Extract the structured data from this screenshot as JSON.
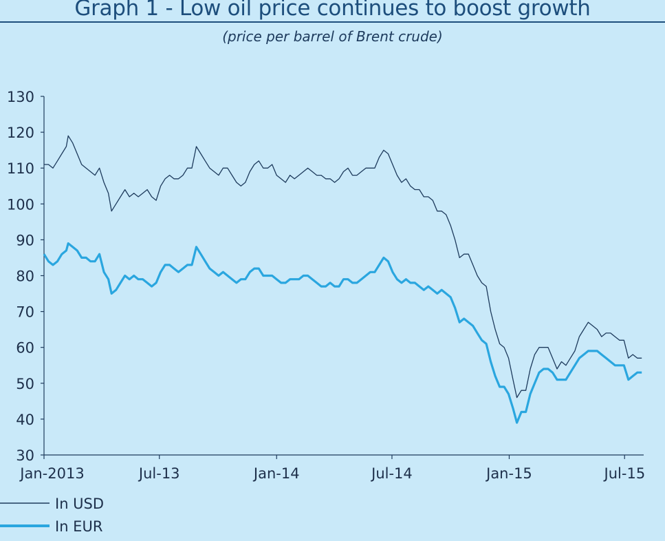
{
  "chart_data": {
    "type": "line",
    "title": "Graph 1 - Low oil price continues to boost growth",
    "subtitle": "(price per barrel of Brent crude)",
    "xlabel": "",
    "ylabel": "",
    "ylim": [
      30,
      130
    ],
    "yticks": [
      30,
      40,
      50,
      60,
      70,
      80,
      90,
      100,
      110,
      120,
      130
    ],
    "xlim": [
      "2013-01-01",
      "2015-07-31"
    ],
    "xticks": [
      {
        "date": "2013-01-01",
        "label": "Jan-2013"
      },
      {
        "date": "2013-07-01",
        "label": "Jul-13"
      },
      {
        "date": "2014-01-01",
        "label": "Jan-14"
      },
      {
        "date": "2014-07-01",
        "label": "Jul-14"
      },
      {
        "date": "2015-01-01",
        "label": "Jan-15"
      },
      {
        "date": "2015-07-01",
        "label": "Jul-15"
      }
    ],
    "grid": false,
    "legend_position": "bottom-left",
    "series": [
      {
        "name": "In USD",
        "color": "#1d3a5c",
        "points": [
          [
            "2013-01-01",
            111
          ],
          [
            "2013-01-08",
            111
          ],
          [
            "2013-01-15",
            110
          ],
          [
            "2013-01-22",
            112
          ],
          [
            "2013-01-29",
            114
          ],
          [
            "2013-02-05",
            116
          ],
          [
            "2013-02-08",
            119
          ],
          [
            "2013-02-15",
            117
          ],
          [
            "2013-02-22",
            114
          ],
          [
            "2013-03-01",
            111
          ],
          [
            "2013-03-08",
            110
          ],
          [
            "2013-03-15",
            109
          ],
          [
            "2013-03-22",
            108
          ],
          [
            "2013-03-29",
            110
          ],
          [
            "2013-04-05",
            106
          ],
          [
            "2013-04-12",
            103
          ],
          [
            "2013-04-17",
            98
          ],
          [
            "2013-04-24",
            100
          ],
          [
            "2013-05-01",
            102
          ],
          [
            "2013-05-08",
            104
          ],
          [
            "2013-05-15",
            102
          ],
          [
            "2013-05-22",
            103
          ],
          [
            "2013-05-29",
            102
          ],
          [
            "2013-06-05",
            103
          ],
          [
            "2013-06-12",
            104
          ],
          [
            "2013-06-19",
            102
          ],
          [
            "2013-06-26",
            101
          ],
          [
            "2013-07-03",
            105
          ],
          [
            "2013-07-10",
            107
          ],
          [
            "2013-07-17",
            108
          ],
          [
            "2013-07-24",
            107
          ],
          [
            "2013-07-31",
            107
          ],
          [
            "2013-08-07",
            108
          ],
          [
            "2013-08-14",
            110
          ],
          [
            "2013-08-21",
            110
          ],
          [
            "2013-08-28",
            116
          ],
          [
            "2013-09-04",
            114
          ],
          [
            "2013-09-11",
            112
          ],
          [
            "2013-09-18",
            110
          ],
          [
            "2013-09-25",
            109
          ],
          [
            "2013-10-02",
            108
          ],
          [
            "2013-10-09",
            110
          ],
          [
            "2013-10-16",
            110
          ],
          [
            "2013-10-23",
            108
          ],
          [
            "2013-10-30",
            106
          ],
          [
            "2013-11-06",
            105
          ],
          [
            "2013-11-13",
            106
          ],
          [
            "2013-11-20",
            109
          ],
          [
            "2013-11-27",
            111
          ],
          [
            "2013-12-04",
            112
          ],
          [
            "2013-12-11",
            110
          ],
          [
            "2013-12-18",
            110
          ],
          [
            "2013-12-25",
            111
          ],
          [
            "2014-01-01",
            108
          ],
          [
            "2014-01-08",
            107
          ],
          [
            "2014-01-15",
            106
          ],
          [
            "2014-01-22",
            108
          ],
          [
            "2014-01-29",
            107
          ],
          [
            "2014-02-05",
            108
          ],
          [
            "2014-02-12",
            109
          ],
          [
            "2014-02-19",
            110
          ],
          [
            "2014-02-26",
            109
          ],
          [
            "2014-03-05",
            108
          ],
          [
            "2014-03-12",
            108
          ],
          [
            "2014-03-19",
            107
          ],
          [
            "2014-03-26",
            107
          ],
          [
            "2014-04-02",
            106
          ],
          [
            "2014-04-09",
            107
          ],
          [
            "2014-04-16",
            109
          ],
          [
            "2014-04-23",
            110
          ],
          [
            "2014-04-30",
            108
          ],
          [
            "2014-05-07",
            108
          ],
          [
            "2014-05-14",
            109
          ],
          [
            "2014-05-21",
            110
          ],
          [
            "2014-05-28",
            110
          ],
          [
            "2014-06-04",
            110
          ],
          [
            "2014-06-11",
            113
          ],
          [
            "2014-06-18",
            115
          ],
          [
            "2014-06-25",
            114
          ],
          [
            "2014-07-02",
            111
          ],
          [
            "2014-07-09",
            108
          ],
          [
            "2014-07-16",
            106
          ],
          [
            "2014-07-23",
            107
          ],
          [
            "2014-07-30",
            105
          ],
          [
            "2014-08-06",
            104
          ],
          [
            "2014-08-13",
            104
          ],
          [
            "2014-08-20",
            102
          ],
          [
            "2014-08-27",
            102
          ],
          [
            "2014-09-03",
            101
          ],
          [
            "2014-09-10",
            98
          ],
          [
            "2014-09-17",
            98
          ],
          [
            "2014-09-24",
            97
          ],
          [
            "2014-10-01",
            94
          ],
          [
            "2014-10-08",
            90
          ],
          [
            "2014-10-15",
            85
          ],
          [
            "2014-10-22",
            86
          ],
          [
            "2014-10-29",
            86
          ],
          [
            "2014-11-05",
            83
          ],
          [
            "2014-11-12",
            80
          ],
          [
            "2014-11-19",
            78
          ],
          [
            "2014-11-26",
            77
          ],
          [
            "2014-12-03",
            70
          ],
          [
            "2014-12-10",
            65
          ],
          [
            "2014-12-17",
            61
          ],
          [
            "2014-12-24",
            60
          ],
          [
            "2014-12-31",
            57
          ],
          [
            "2015-01-07",
            51
          ],
          [
            "2015-01-13",
            46
          ],
          [
            "2015-01-20",
            48
          ],
          [
            "2015-01-27",
            48
          ],
          [
            "2015-02-03",
            54
          ],
          [
            "2015-02-10",
            58
          ],
          [
            "2015-02-17",
            60
          ],
          [
            "2015-02-24",
            60
          ],
          [
            "2015-03-03",
            60
          ],
          [
            "2015-03-10",
            57
          ],
          [
            "2015-03-17",
            54
          ],
          [
            "2015-03-24",
            56
          ],
          [
            "2015-03-31",
            55
          ],
          [
            "2015-04-07",
            57
          ],
          [
            "2015-04-14",
            59
          ],
          [
            "2015-04-21",
            63
          ],
          [
            "2015-04-28",
            65
          ],
          [
            "2015-05-05",
            67
          ],
          [
            "2015-05-12",
            66
          ],
          [
            "2015-05-19",
            65
          ],
          [
            "2015-05-26",
            63
          ],
          [
            "2015-06-02",
            64
          ],
          [
            "2015-06-09",
            64
          ],
          [
            "2015-06-16",
            63
          ],
          [
            "2015-06-23",
            62
          ],
          [
            "2015-06-30",
            62
          ],
          [
            "2015-07-07",
            57
          ],
          [
            "2015-07-14",
            58
          ],
          [
            "2015-07-21",
            57
          ],
          [
            "2015-07-28",
            57
          ]
        ]
      },
      {
        "name": "In EUR",
        "color": "#2aa6df",
        "points": [
          [
            "2013-01-01",
            86
          ],
          [
            "2013-01-08",
            84
          ],
          [
            "2013-01-15",
            83
          ],
          [
            "2013-01-22",
            84
          ],
          [
            "2013-01-29",
            86
          ],
          [
            "2013-02-05",
            87
          ],
          [
            "2013-02-08",
            89
          ],
          [
            "2013-02-15",
            88
          ],
          [
            "2013-02-22",
            87
          ],
          [
            "2013-03-01",
            85
          ],
          [
            "2013-03-08",
            85
          ],
          [
            "2013-03-15",
            84
          ],
          [
            "2013-03-22",
            84
          ],
          [
            "2013-03-29",
            86
          ],
          [
            "2013-04-05",
            81
          ],
          [
            "2013-04-12",
            79
          ],
          [
            "2013-04-17",
            75
          ],
          [
            "2013-04-24",
            76
          ],
          [
            "2013-05-01",
            78
          ],
          [
            "2013-05-08",
            80
          ],
          [
            "2013-05-15",
            79
          ],
          [
            "2013-05-22",
            80
          ],
          [
            "2013-05-29",
            79
          ],
          [
            "2013-06-05",
            79
          ],
          [
            "2013-06-12",
            78
          ],
          [
            "2013-06-19",
            77
          ],
          [
            "2013-06-26",
            78
          ],
          [
            "2013-07-03",
            81
          ],
          [
            "2013-07-10",
            83
          ],
          [
            "2013-07-17",
            83
          ],
          [
            "2013-07-24",
            82
          ],
          [
            "2013-07-31",
            81
          ],
          [
            "2013-08-07",
            82
          ],
          [
            "2013-08-14",
            83
          ],
          [
            "2013-08-21",
            83
          ],
          [
            "2013-08-28",
            88
          ],
          [
            "2013-09-04",
            86
          ],
          [
            "2013-09-11",
            84
          ],
          [
            "2013-09-18",
            82
          ],
          [
            "2013-09-25",
            81
          ],
          [
            "2013-10-02",
            80
          ],
          [
            "2013-10-09",
            81
          ],
          [
            "2013-10-16",
            80
          ],
          [
            "2013-10-23",
            79
          ],
          [
            "2013-10-30",
            78
          ],
          [
            "2013-11-06",
            79
          ],
          [
            "2013-11-13",
            79
          ],
          [
            "2013-11-20",
            81
          ],
          [
            "2013-11-27",
            82
          ],
          [
            "2013-12-04",
            82
          ],
          [
            "2013-12-11",
            80
          ],
          [
            "2013-12-18",
            80
          ],
          [
            "2013-12-25",
            80
          ],
          [
            "2014-01-01",
            79
          ],
          [
            "2014-01-08",
            78
          ],
          [
            "2014-01-15",
            78
          ],
          [
            "2014-01-22",
            79
          ],
          [
            "2014-01-29",
            79
          ],
          [
            "2014-02-05",
            79
          ],
          [
            "2014-02-12",
            80
          ],
          [
            "2014-02-19",
            80
          ],
          [
            "2014-02-26",
            79
          ],
          [
            "2014-03-05",
            78
          ],
          [
            "2014-03-12",
            77
          ],
          [
            "2014-03-19",
            77
          ],
          [
            "2014-03-26",
            78
          ],
          [
            "2014-04-02",
            77
          ],
          [
            "2014-04-09",
            77
          ],
          [
            "2014-04-16",
            79
          ],
          [
            "2014-04-23",
            79
          ],
          [
            "2014-04-30",
            78
          ],
          [
            "2014-05-07",
            78
          ],
          [
            "2014-05-14",
            79
          ],
          [
            "2014-05-21",
            80
          ],
          [
            "2014-05-28",
            81
          ],
          [
            "2014-06-04",
            81
          ],
          [
            "2014-06-11",
            83
          ],
          [
            "2014-06-18",
            85
          ],
          [
            "2014-06-25",
            84
          ],
          [
            "2014-07-02",
            81
          ],
          [
            "2014-07-09",
            79
          ],
          [
            "2014-07-16",
            78
          ],
          [
            "2014-07-23",
            79
          ],
          [
            "2014-07-30",
            78
          ],
          [
            "2014-08-06",
            78
          ],
          [
            "2014-08-13",
            77
          ],
          [
            "2014-08-20",
            76
          ],
          [
            "2014-08-27",
            77
          ],
          [
            "2014-09-03",
            76
          ],
          [
            "2014-09-10",
            75
          ],
          [
            "2014-09-17",
            76
          ],
          [
            "2014-09-24",
            75
          ],
          [
            "2014-10-01",
            74
          ],
          [
            "2014-10-08",
            71
          ],
          [
            "2014-10-15",
            67
          ],
          [
            "2014-10-22",
            68
          ],
          [
            "2014-10-29",
            67
          ],
          [
            "2014-11-05",
            66
          ],
          [
            "2014-11-12",
            64
          ],
          [
            "2014-11-19",
            62
          ],
          [
            "2014-11-26",
            61
          ],
          [
            "2014-12-03",
            56
          ],
          [
            "2014-12-10",
            52
          ],
          [
            "2014-12-17",
            49
          ],
          [
            "2014-12-24",
            49
          ],
          [
            "2014-12-31",
            47
          ],
          [
            "2015-01-07",
            43
          ],
          [
            "2015-01-13",
            39
          ],
          [
            "2015-01-20",
            42
          ],
          [
            "2015-01-27",
            42
          ],
          [
            "2015-02-03",
            47
          ],
          [
            "2015-02-10",
            50
          ],
          [
            "2015-02-17",
            53
          ],
          [
            "2015-02-24",
            54
          ],
          [
            "2015-03-03",
            54
          ],
          [
            "2015-03-10",
            53
          ],
          [
            "2015-03-17",
            51
          ],
          [
            "2015-03-24",
            51
          ],
          [
            "2015-03-31",
            51
          ],
          [
            "2015-04-07",
            53
          ],
          [
            "2015-04-14",
            55
          ],
          [
            "2015-04-21",
            57
          ],
          [
            "2015-04-28",
            58
          ],
          [
            "2015-05-05",
            59
          ],
          [
            "2015-05-12",
            59
          ],
          [
            "2015-05-19",
            59
          ],
          [
            "2015-05-26",
            58
          ],
          [
            "2015-06-02",
            57
          ],
          [
            "2015-06-09",
            56
          ],
          [
            "2015-06-16",
            55
          ],
          [
            "2015-06-23",
            55
          ],
          [
            "2015-06-30",
            55
          ],
          [
            "2015-07-07",
            51
          ],
          [
            "2015-07-14",
            52
          ],
          [
            "2015-07-21",
            53
          ],
          [
            "2015-07-28",
            53
          ]
        ]
      }
    ]
  }
}
